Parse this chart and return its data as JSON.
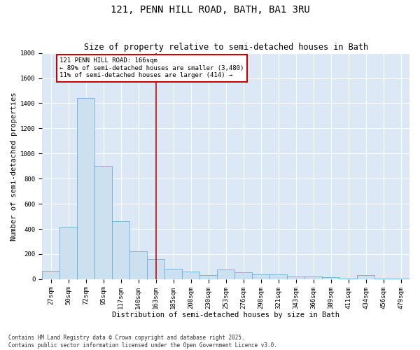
{
  "title": "121, PENN HILL ROAD, BATH, BA1 3RU",
  "subtitle": "Size of property relative to semi-detached houses in Bath",
  "xlabel": "Distribution of semi-detached houses by size in Bath",
  "ylabel": "Number of semi-detached properties",
  "categories": [
    "27sqm",
    "50sqm",
    "72sqm",
    "95sqm",
    "117sqm",
    "140sqm",
    "163sqm",
    "185sqm",
    "208sqm",
    "230sqm",
    "253sqm",
    "276sqm",
    "298sqm",
    "321sqm",
    "343sqm",
    "366sqm",
    "389sqm",
    "411sqm",
    "434sqm",
    "456sqm",
    "479sqm"
  ],
  "values": [
    65,
    415,
    1440,
    900,
    460,
    220,
    160,
    80,
    60,
    30,
    75,
    55,
    40,
    40,
    20,
    20,
    15,
    5,
    30,
    5,
    5
  ],
  "bar_color": "#cce0f0",
  "bar_edge_color": "#6aaed6",
  "vline_x_index": 6,
  "vline_color": "#cc0000",
  "annotation_line1": "121 PENN HILL ROAD: 166sqm",
  "annotation_line2": "← 89% of semi-detached houses are smaller (3,480)",
  "annotation_line3": "11% of semi-detached houses are larger (414) →",
  "annotation_box_color": "#cc0000",
  "ylim": [
    0,
    1800
  ],
  "yticks": [
    0,
    200,
    400,
    600,
    800,
    1000,
    1200,
    1400,
    1600,
    1800
  ],
  "bg_color": "#dce8f5",
  "footnote1": "Contains HM Land Registry data © Crown copyright and database right 2025.",
  "footnote2": "Contains public sector information licensed under the Open Government Licence v3.0.",
  "title_fontsize": 10,
  "subtitle_fontsize": 8.5,
  "label_fontsize": 7.5,
  "tick_fontsize": 6.5,
  "annotation_fontsize": 6.5
}
